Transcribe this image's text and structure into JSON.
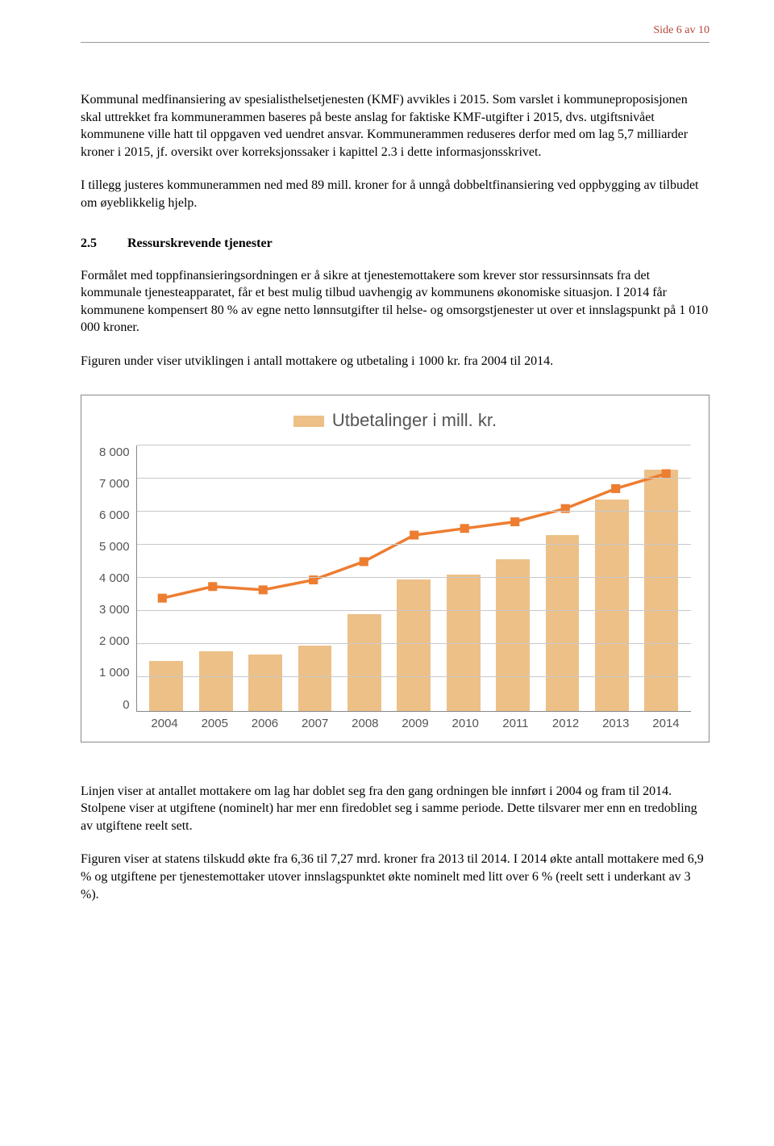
{
  "page_number_label": "Side 6 av 10",
  "paragraphs": {
    "p1": "Kommunal medfinansiering av spesialisthelsetjenesten (KMF) avvikles i 2015. Som varslet i kommuneproposisjonen skal uttrekket fra kommunerammen baseres på beste anslag for faktiske KMF-utgifter i 2015, dvs. utgiftsnivået kommunene ville hatt til oppgaven ved uendret ansvar. Kommunerammen reduseres derfor med om lag 5,7 milliarder kroner i 2015, jf. oversikt over korreksjonssaker i kapittel 2.3 i dette informasjonsskrivet.",
    "p2": "I tillegg justeres kommunerammen ned med 89 mill. kroner for å unngå dobbeltfinansiering ved oppbygging av tilbudet om øyeblikkelig hjelp.",
    "p3": "Formålet med toppfinansieringsordningen er å sikre at tjenestemottakere som krever stor ressursinnsats fra det kommunale tjenesteapparatet, får et best mulig tilbud uavhengig av kommunens økonomiske situasjon. I 2014 får kommunene kompensert 80 % av egne netto lønnsutgifter til helse- og omsorgstjenester ut over et innslagspunkt på 1 010 000 kroner.",
    "p4": "Figuren under viser utviklingen i antall mottakere og utbetaling i 1000 kr. fra 2004 til 2014.",
    "p5": "Linjen viser at antallet mottakere om lag har doblet seg fra den gang ordningen ble innført i 2004 og fram til 2014. Stolpene viser at utgiftene (nominelt) har mer enn firedoblet seg i samme periode. Dette tilsvarer mer enn en tredobling av utgiftene reelt sett.",
    "p6": "Figuren viser at statens tilskudd økte fra 6,36 til 7,27 mrd. kroner fra 2013 til 2014. I 2014 økte antall mottakere med 6,9 % og utgiftene per tjenestemottaker utover innslagspunktet økte nominelt med litt over 6 % (reelt sett i underkant av 3 %)."
  },
  "section": {
    "number": "2.5",
    "title": "Ressurskrevende tjenester"
  },
  "chart": {
    "type": "bar+line",
    "legend_label": "Utbetalinger i mill. kr.",
    "bar_color": "#edc088",
    "line_color": "#ed7d31",
    "marker_color": "#ed7d31",
    "marker_size": 11,
    "line_width": 3.5,
    "grid_color": "#c9c9c9",
    "axis_color": "#888888",
    "text_color": "#555555",
    "axis_fontsize": 15,
    "legend_fontsize": 22,
    "ylim": [
      0,
      8000
    ],
    "ytick_step": 1000,
    "y_ticks": [
      "8 000",
      "7 000",
      "6 000",
      "5 000",
      "4 000",
      "3 000",
      "2 000",
      "1 000",
      "0"
    ],
    "categories": [
      "2004",
      "2005",
      "2006",
      "2007",
      "2008",
      "2009",
      "2010",
      "2011",
      "2012",
      "2013",
      "2014"
    ],
    "bar_values": [
      1500,
      1800,
      1700,
      1950,
      2900,
      3950,
      4100,
      4550,
      5300,
      6360,
      7270
    ],
    "line_values": [
      3400,
      3750,
      3650,
      3950,
      4500,
      5300,
      5500,
      5700,
      6100,
      6700,
      7150
    ]
  }
}
